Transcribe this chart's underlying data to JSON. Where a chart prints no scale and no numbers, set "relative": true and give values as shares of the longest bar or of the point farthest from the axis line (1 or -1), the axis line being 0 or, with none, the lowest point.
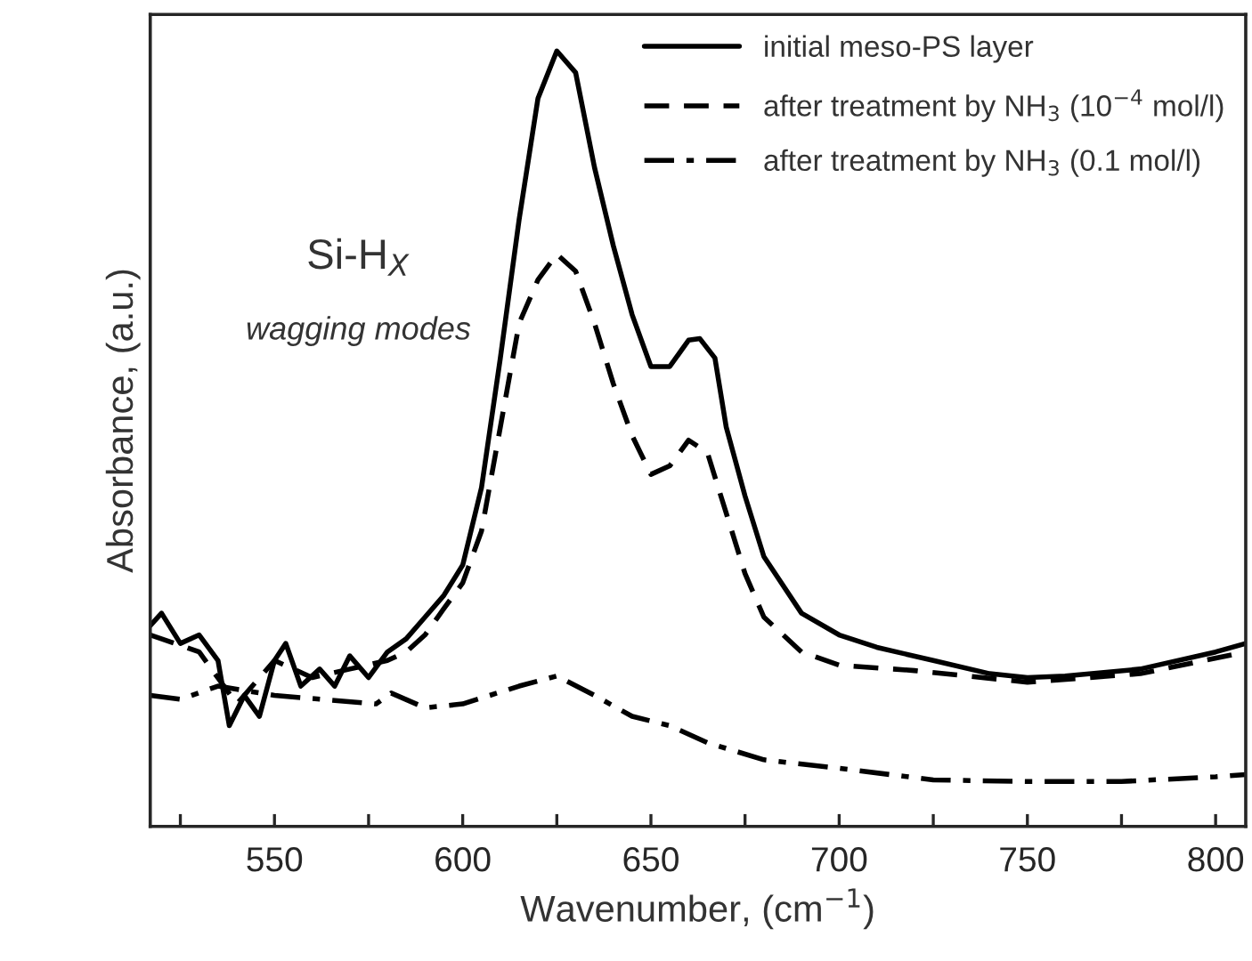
{
  "chart_data": {
    "type": "line",
    "relative": true,
    "xlabel": "Wavenumber, (cm$^{−1}$)",
    "ylabel": "Absorbance, (a.u.)",
    "xlim": [
      517,
      808
    ],
    "xticks": [
      {
        "value": 525,
        "label": null
      },
      550,
      {
        "value": 575,
        "label": null
      },
      600,
      {
        "value": 625,
        "label": null
      },
      650,
      {
        "value": 675,
        "label": null
      },
      700,
      {
        "value": 725,
        "label": null
      },
      750,
      {
        "value": 775,
        "label": null
      },
      800
    ],
    "tick_labels": "x",
    "grid": false,
    "legend": "top right",
    "marker": "none",
    "annotations": [
      "Si-H$_{X}$",
      "wagging modes"
    ],
    "series": [
      {
        "name": "initial meso-PS layer",
        "color": "#000000",
        "line_style": "solid",
        "x": [
          517,
          520,
          525,
          530,
          535,
          538,
          542,
          546,
          550,
          553,
          557,
          562,
          566,
          570,
          575,
          580,
          585,
          590,
          595,
          600,
          605,
          610,
          615,
          620,
          625,
          630,
          635,
          640,
          645,
          650,
          655,
          660,
          663,
          667,
          670,
          675,
          680,
          690,
          700,
          710,
          725,
          740,
          750,
          760,
          780,
          800,
          808
        ],
        "values": [
          0.259,
          0.275,
          0.236,
          0.247,
          0.214,
          0.13,
          0.169,
          0.142,
          0.214,
          0.236,
          0.181,
          0.203,
          0.181,
          0.22,
          0.192,
          0.225,
          0.242,
          0.27,
          0.298,
          0.337,
          0.437,
          0.604,
          0.783,
          0.939,
          1.0,
          0.972,
          0.85,
          0.749,
          0.66,
          0.593,
          0.593,
          0.627,
          0.629,
          0.604,
          0.515,
          0.426,
          0.348,
          0.275,
          0.247,
          0.231,
          0.214,
          0.197,
          0.192,
          0.194,
          0.203,
          0.225,
          0.236
        ]
      },
      {
        "name": "after treatment by NH$_{3}$ (10$^{−4}$ mol/l)",
        "color": "#000000",
        "line_style": "dashed",
        "x": [
          517,
          530,
          540,
          550,
          560,
          570,
          580,
          585,
          590,
          595,
          600,
          605,
          610,
          615,
          620,
          625,
          630,
          635,
          640,
          645,
          650,
          655,
          660,
          665,
          670,
          675,
          680,
          690,
          700,
          720,
          750,
          780,
          808
        ],
        "values": [
          0.247,
          0.225,
          0.158,
          0.214,
          0.192,
          0.203,
          0.214,
          0.225,
          0.247,
          0.281,
          0.314,
          0.381,
          0.515,
          0.649,
          0.705,
          0.738,
          0.716,
          0.649,
          0.571,
          0.504,
          0.454,
          0.465,
          0.498,
          0.482,
          0.404,
          0.326,
          0.27,
          0.225,
          0.208,
          0.201,
          0.186,
          0.197,
          0.225
        ]
      },
      {
        "name": "after treatment by NH$_{3}$ (0.1 mol/l)",
        "color": "#000000",
        "line_style": "dashdot",
        "x": [
          517,
          525,
          535,
          550,
          577,
          581,
          590,
          600,
          615,
          625,
          635,
          645,
          655,
          665,
          680,
          700,
          725,
          750,
          775,
          800,
          808
        ],
        "values": [
          0.169,
          0.164,
          0.181,
          0.169,
          0.158,
          0.172,
          0.153,
          0.158,
          0.181,
          0.194,
          0.169,
          0.142,
          0.13,
          0.108,
          0.086,
          0.075,
          0.06,
          0.058,
          0.058,
          0.064,
          0.067
        ]
      }
    ]
  }
}
